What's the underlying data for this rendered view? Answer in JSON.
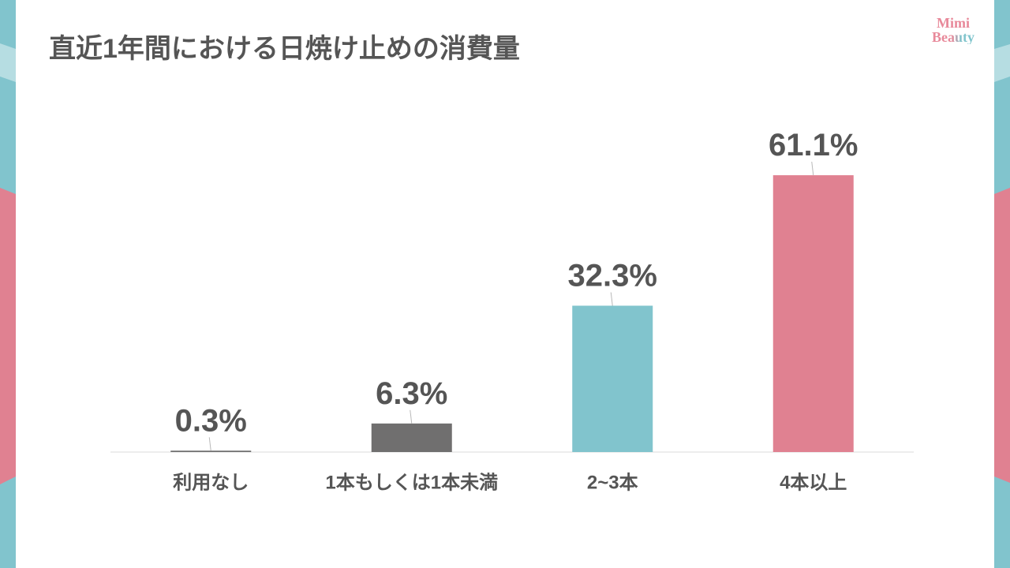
{
  "logo": {
    "line1": "Mimi",
    "line2": "Beauty"
  },
  "colors": {
    "teal": "#81c4cd",
    "teal_light": "#b6dde2",
    "pink": "#e08191"
  },
  "chart_data": {
    "type": "bar",
    "title": "直近1年間における日焼け止めの消費量",
    "categories": [
      "利用なし",
      "1本もしくは1本未満",
      "2~3本",
      "4本以上"
    ],
    "values": [
      0.3,
      6.3,
      32.3,
      61.1
    ],
    "value_labels": [
      "0.3%",
      "6.3%",
      "32.3%",
      "61.1%"
    ],
    "bar_colors": [
      "#6f6e6e",
      "#706f6f",
      "#81c4cd",
      "#e08191"
    ],
    "ylim": [
      0,
      70
    ],
    "grid": false
  }
}
